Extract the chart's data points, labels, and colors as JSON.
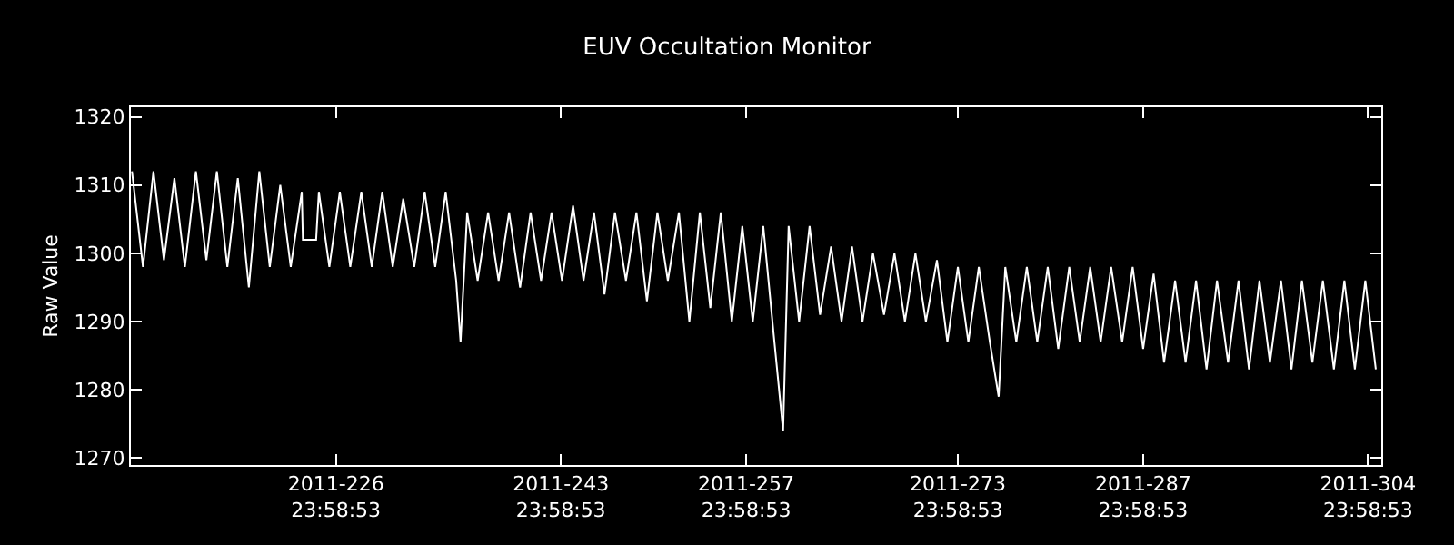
{
  "chart_data": {
    "type": "line",
    "title": "EUV Occultation Monitor",
    "ylabel": "Raw Value",
    "xlim": [
      "2011-07-30T12:00",
      "2011-11-02T00:00"
    ],
    "ylim": [
      1269.0,
      1321.4
    ],
    "xticks": [
      {
        "value": "2011-08-14T23:59",
        "label": "2011-226\n23:58:53"
      },
      {
        "value": "2011-08-31T23:59",
        "label": "2011-243\n23:58:53"
      },
      {
        "value": "2011-09-14T23:59",
        "label": "2011-257\n23:58:53"
      },
      {
        "value": "2011-09-30T23:59",
        "label": "2011-273\n23:58:53"
      },
      {
        "value": "2011-10-14T23:59",
        "label": "2011-287\n23:58:53"
      },
      {
        "value": "2011-10-31T23:59",
        "label": "2011-304\n23:58:53"
      }
    ],
    "yticks": [
      1270,
      1280,
      1290,
      1300,
      1310,
      1320
    ],
    "grid": false,
    "marker": "none",
    "line_style": "solid",
    "series": [
      {
        "color": "#ffffff",
        "x": [
          "2011-07-30T14:00",
          "2011-07-31T10:00",
          "2011-08-01T05:00",
          "2011-08-02T00:00",
          "2011-08-02T19:00",
          "2011-08-03T14:00",
          "2011-08-04T10:00",
          "2011-08-05T05:00",
          "2011-08-06T00:00",
          "2011-08-06T19:00",
          "2011-08-07T14:00",
          "2011-08-08T10:00",
          "2011-08-09T05:00",
          "2011-08-10T00:00",
          "2011-08-10T19:00",
          "2011-08-11T14:00",
          "2011-08-12T10:00",
          "2011-08-12T12:00",
          "2011-08-13T12:00",
          "2011-08-13T17:00",
          "2011-08-14T12:00",
          "2011-08-15T07:00",
          "2011-08-16T02:00",
          "2011-08-16T22:00",
          "2011-08-17T17:00",
          "2011-08-18T12:00",
          "2011-08-19T07:00",
          "2011-08-20T02:00",
          "2011-08-20T22:00",
          "2011-08-21T17:00",
          "2011-08-22T12:00",
          "2011-08-23T07:00",
          "2011-08-24T02:00",
          "2011-08-24T10:00",
          "2011-08-24T22:00",
          "2011-08-25T17:00",
          "2011-08-26T12:00",
          "2011-08-27T07:00",
          "2011-08-28T02:00",
          "2011-08-28T22:00",
          "2011-08-29T17:00",
          "2011-08-30T12:00",
          "2011-08-31T07:00",
          "2011-09-01T02:00",
          "2011-09-01T22:00",
          "2011-09-02T17:00",
          "2011-09-03T12:00",
          "2011-09-04T07:00",
          "2011-09-05T02:00",
          "2011-09-05T22:00",
          "2011-09-06T17:00",
          "2011-09-07T12:00",
          "2011-09-08T07:00",
          "2011-09-09T02:00",
          "2011-09-09T22:00",
          "2011-09-10T17:00",
          "2011-09-11T12:00",
          "2011-09-12T07:00",
          "2011-09-13T02:00",
          "2011-09-13T22:00",
          "2011-09-14T17:00",
          "2011-09-15T12:00",
          "2011-09-16T07:00",
          "2011-09-17T02:00",
          "2011-09-17T19:00",
          "2011-09-18T05:00",
          "2011-09-19T00:00",
          "2011-09-19T19:00",
          "2011-09-20T14:00",
          "2011-09-21T10:00",
          "2011-09-22T05:00",
          "2011-09-23T00:00",
          "2011-09-23T19:00",
          "2011-09-24T14:00",
          "2011-09-25T10:00",
          "2011-09-26T05:00",
          "2011-09-27T00:00",
          "2011-09-27T19:00",
          "2011-09-28T14:00",
          "2011-09-29T10:00",
          "2011-09-30T05:00",
          "2011-10-01T00:00",
          "2011-10-01T19:00",
          "2011-10-02T14:00",
          "2011-10-03T10:00",
          "2011-10-04T02:00",
          "2011-10-04T14:00",
          "2011-10-05T10:00",
          "2011-10-06T05:00",
          "2011-10-07T00:00",
          "2011-10-07T19:00",
          "2011-10-08T14:00",
          "2011-10-09T10:00",
          "2011-10-10T05:00",
          "2011-10-11T00:00",
          "2011-10-11T19:00",
          "2011-10-12T14:00",
          "2011-10-13T10:00",
          "2011-10-14T05:00",
          "2011-10-15T00:00",
          "2011-10-15T19:00",
          "2011-10-16T14:00",
          "2011-10-17T10:00",
          "2011-10-18T05:00",
          "2011-10-19T00:00",
          "2011-10-19T19:00",
          "2011-10-20T14:00",
          "2011-10-21T10:00",
          "2011-10-22T05:00",
          "2011-10-23T00:00",
          "2011-10-23T19:00",
          "2011-10-24T14:00",
          "2011-10-25T10:00",
          "2011-10-26T05:00",
          "2011-10-27T00:00",
          "2011-10-27T19:00",
          "2011-10-28T14:00",
          "2011-10-29T10:00",
          "2011-10-30T05:00",
          "2011-10-31T00:00",
          "2011-10-31T19:00",
          "2011-11-01T14:00"
        ],
        "values": [
          1312,
          1298,
          1312,
          1299,
          1311,
          1298,
          1312,
          1299,
          1312,
          1298,
          1311,
          1295,
          1312,
          1298,
          1310,
          1298,
          1309,
          1302,
          1302,
          1309,
          1298,
          1309,
          1298,
          1309,
          1298,
          1309,
          1298,
          1308,
          1298,
          1309,
          1298,
          1309,
          1296,
          1287,
          1306,
          1296,
          1306,
          1296,
          1306,
          1295,
          1306,
          1296,
          1306,
          1296,
          1307,
          1296,
          1306,
          1294,
          1306,
          1296,
          1306,
          1293,
          1306,
          1296,
          1306,
          1290,
          1306,
          1292,
          1306,
          1290,
          1304,
          1290,
          1304,
          1288,
          1274,
          1304,
          1290,
          1304,
          1291,
          1301,
          1290,
          1301,
          1290,
          1300,
          1291,
          1300,
          1290,
          1300,
          1290,
          1299,
          1287,
          1298,
          1287,
          1298,
          1287,
          1279,
          1298,
          1287,
          1298,
          1287,
          1298,
          1286,
          1298,
          1287,
          1298,
          1287,
          1298,
          1287,
          1298,
          1286,
          1297,
          1284,
          1296,
          1284,
          1296,
          1283,
          1296,
          1284,
          1296,
          1283,
          1296,
          1284,
          1296,
          1283,
          1296,
          1284,
          1296,
          1283,
          1296,
          1283,
          1296,
          1283
        ]
      }
    ]
  }
}
